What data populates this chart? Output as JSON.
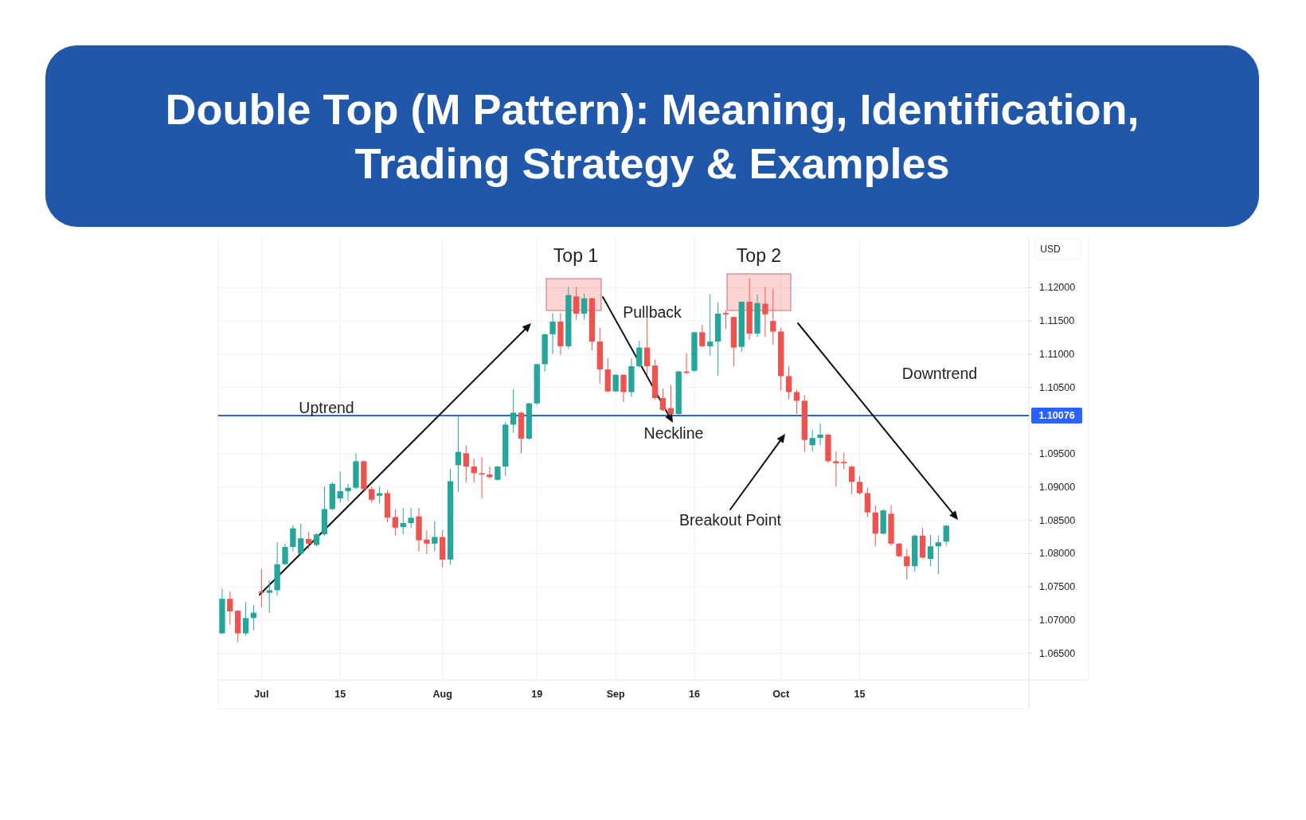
{
  "chart_data": {
    "type": "candlestick",
    "title": "Double Top (M Pattern): Meaning, Identification, Trading Strategy & Examples",
    "ylabel": "USD",
    "ylim": [
      1.061,
      1.1276
    ],
    "yticks": [
      {
        "value": 1.065,
        "label": "1.06500"
      },
      {
        "value": 1.07,
        "label": "1.07000"
      },
      {
        "value": 1.075,
        "label": "1.07500"
      },
      {
        "value": 1.08,
        "label": "1.08000"
      },
      {
        "value": 1.085,
        "label": "1.08500"
      },
      {
        "value": 1.09,
        "label": "1.09000"
      },
      {
        "value": 1.095,
        "label": "1.09500"
      },
      {
        "value": 1.105,
        "label": "1.10500"
      },
      {
        "value": 1.11,
        "label": "1.11000"
      },
      {
        "value": 1.115,
        "label": "1.11500"
      },
      {
        "value": 1.12,
        "label": "1.12000"
      }
    ],
    "grid": true,
    "categories": [
      null,
      null,
      null,
      null,
      null,
      "Jul",
      null,
      null,
      null,
      null,
      null,
      null,
      null,
      null,
      null,
      "15",
      null,
      null,
      null,
      null,
      null,
      null,
      null,
      null,
      null,
      null,
      null,
      null,
      "Aug",
      null,
      null,
      null,
      null,
      null,
      null,
      null,
      null,
      null,
      null,
      null,
      "19",
      null,
      null,
      null,
      null,
      null,
      null,
      null,
      null,
      null,
      "Sep",
      null,
      null,
      null,
      null,
      null,
      null,
      null,
      null,
      null,
      "16",
      null,
      null,
      null,
      null,
      null,
      null,
      null,
      null,
      null,
      null,
      "Oct",
      null,
      null,
      null,
      null,
      null,
      null,
      null,
      null,
      null,
      "15",
      null,
      null,
      null,
      null,
      null,
      null,
      null,
      null,
      null,
      null,
      null,
      null,
      null,
      null,
      null,
      null,
      null,
      null,
      null,
      null,
      null
    ],
    "ohlc": [
      [
        1.068,
        1.0747,
        1.0679,
        1.0732
      ],
      [
        1.0732,
        1.0743,
        1.0693,
        1.0713
      ],
      [
        1.0714,
        1.0715,
        1.0667,
        1.068
      ],
      [
        1.068,
        1.0727,
        1.0677,
        1.0703
      ],
      [
        1.0703,
        1.0722,
        1.0685,
        1.0711
      ],
      [
        1.0743,
        1.0777,
        1.0719,
        1.0741
      ],
      [
        1.0741,
        1.0759,
        1.0711,
        1.0745
      ],
      [
        1.0745,
        1.0817,
        1.0737,
        1.0784
      ],
      [
        1.0784,
        1.0815,
        1.0783,
        1.081
      ],
      [
        1.081,
        1.0843,
        1.0803,
        1.0838
      ],
      [
        1.08,
        1.0845,
        1.0799,
        1.0823
      ],
      [
        1.0822,
        1.0833,
        1.0807,
        1.0815
      ],
      [
        1.0813,
        1.0831,
        1.0811,
        1.0829
      ],
      [
        1.0829,
        1.0901,
        1.0827,
        1.0867
      ],
      [
        1.0867,
        1.0907,
        1.0865,
        1.0905
      ],
      [
        1.0883,
        1.0923,
        1.0877,
        1.0894
      ],
      [
        1.0894,
        1.0905,
        1.0879,
        1.0899
      ],
      [
        1.0899,
        1.0951,
        1.0897,
        1.0939
      ],
      [
        1.0939,
        1.094,
        1.0895,
        1.0897
      ],
      [
        1.0897,
        1.0901,
        1.0877,
        1.0881
      ],
      [
        1.0887,
        1.0901,
        1.0875,
        1.0891
      ],
      [
        1.0891,
        1.0896,
        1.0847,
        1.0854
      ],
      [
        1.0855,
        1.0867,
        1.0827,
        1.0839
      ],
      [
        1.084,
        1.0869,
        1.0829,
        1.0846
      ],
      [
        1.0846,
        1.0869,
        1.0839,
        1.0854
      ],
      [
        1.0856,
        1.0869,
        1.0803,
        1.082
      ],
      [
        1.0821,
        1.0835,
        1.0799,
        1.0815
      ],
      [
        1.0815,
        1.0849,
        1.0803,
        1.0825
      ],
      [
        1.0825,
        1.0835,
        1.0779,
        1.0791
      ],
      [
        1.0791,
        1.0927,
        1.0783,
        1.0909
      ],
      [
        1.0933,
        1.1007,
        1.0893,
        1.0953
      ],
      [
        1.0951,
        1.0963,
        1.0907,
        1.0931
      ],
      [
        1.0931,
        1.0943,
        1.0907,
        1.0921
      ],
      [
        1.0921,
        1.0945,
        1.0883,
        1.0919
      ],
      [
        1.0919,
        1.0931,
        1.0913,
        1.0915
      ],
      [
        1.0911,
        1.0932,
        1.091,
        1.0931
      ],
      [
        1.0931,
        1.0998,
        1.0917,
        1.0994
      ],
      [
        1.0994,
        1.1047,
        1.0982,
        1.1012
      ],
      [
        1.1012,
        1.1014,
        1.0951,
        1.0973
      ],
      [
        1.0973,
        1.1027,
        1.0971,
        1.1026
      ],
      [
        1.1026,
        1.1086,
        1.1024,
        1.1085
      ],
      [
        1.1085,
        1.1131,
        1.1074,
        1.113
      ],
      [
        1.113,
        1.1162,
        1.11,
        1.1149
      ],
      [
        1.1149,
        1.1162,
        1.1099,
        1.1112
      ],
      [
        1.1112,
        1.1201,
        1.1108,
        1.1189
      ],
      [
        1.1187,
        1.1201,
        1.1152,
        1.1161
      ],
      [
        1.1161,
        1.1191,
        1.1152,
        1.1184
      ],
      [
        1.1184,
        1.1185,
        1.1106,
        1.1119
      ],
      [
        1.1119,
        1.114,
        1.1056,
        1.1077
      ],
      [
        1.1077,
        1.1094,
        1.1043,
        1.1044
      ],
      [
        1.1044,
        1.107,
        1.1043,
        1.1069
      ],
      [
        1.1069,
        1.107,
        1.1028,
        1.1043
      ],
      [
        1.1043,
        1.1094,
        1.1036,
        1.1082
      ],
      [
        1.1082,
        1.112,
        1.108,
        1.111
      ],
      [
        1.111,
        1.1156,
        1.107,
        1.1082
      ],
      [
        1.1083,
        1.1092,
        1.1032,
        1.1034
      ],
      [
        1.1034,
        1.1048,
        1.1014,
        1.1016
      ],
      [
        1.1019,
        1.1054,
        1.1008,
        1.101
      ],
      [
        1.101,
        1.1075,
        1.1009,
        1.1074
      ],
      [
        1.1074,
        1.1102,
        1.107,
        1.1072
      ],
      [
        1.1075,
        1.1134,
        1.1073,
        1.1133
      ],
      [
        1.1133,
        1.1144,
        1.1111,
        1.1112
      ],
      [
        1.1112,
        1.119,
        1.1098,
        1.1119
      ],
      [
        1.1119,
        1.1178,
        1.1068,
        1.1161
      ],
      [
        1.1162,
        1.1166,
        1.1138,
        1.116
      ],
      [
        1.1156,
        1.1157,
        1.1082,
        1.111
      ],
      [
        1.1111,
        1.1179,
        1.1104,
        1.1179
      ],
      [
        1.1179,
        1.1214,
        1.1122,
        1.1131
      ],
      [
        1.1131,
        1.119,
        1.1126,
        1.1177
      ],
      [
        1.1176,
        1.1201,
        1.1126,
        1.116
      ],
      [
        1.115,
        1.1198,
        1.1114,
        1.1134
      ],
      [
        1.1134,
        1.114,
        1.1046,
        1.1067
      ],
      [
        1.1067,
        1.1082,
        1.1032,
        1.1043
      ],
      [
        1.1043,
        1.1046,
        1.101,
        1.103
      ],
      [
        1.103,
        1.1038,
        1.0953,
        1.0971
      ],
      [
        1.0963,
        1.0986,
        1.0954,
        1.0974
      ],
      [
        1.0974,
        1.0996,
        1.0963,
        1.0979
      ],
      [
        1.0979,
        1.098,
        1.0937,
        1.0939
      ],
      [
        1.0939,
        1.0954,
        1.0901,
        1.0936
      ],
      [
        1.0938,
        1.0952,
        1.0927,
        1.0936
      ],
      [
        1.0931,
        1.0932,
        1.0889,
        1.0908
      ],
      [
        1.0908,
        1.0917,
        1.0889,
        1.0891
      ],
      [
        1.0891,
        1.0899,
        1.0855,
        1.0862
      ],
      [
        1.0862,
        1.0873,
        1.0811,
        1.083
      ],
      [
        1.083,
        1.0867,
        1.0829,
        1.0865
      ],
      [
        1.086,
        1.0873,
        1.0812,
        1.0815
      ],
      [
        1.0815,
        1.0816,
        1.0795,
        1.0796
      ],
      [
        1.0796,
        1.0807,
        1.0761,
        1.0781
      ],
      [
        1.0781,
        1.0829,
        1.0773,
        1.0827
      ],
      [
        1.0827,
        1.0839,
        1.0793,
        1.0794
      ],
      [
        1.0792,
        1.0828,
        1.0781,
        1.0811
      ],
      [
        1.0811,
        1.0827,
        1.0769,
        1.0817
      ],
      [
        1.0818,
        1.0843,
        1.0812,
        1.0842
      ],
      null,
      null,
      null,
      null,
      null,
      null,
      null,
      null,
      null,
      null
    ],
    "colors": [
      "#26a69a",
      "#ef5350",
      "#ef5350",
      "#26a69a",
      "#26a69a",
      "#ef5350",
      "#26a69a",
      "#26a69a",
      "#26a69a",
      "#26a69a",
      "#26a69a",
      "#ef5350",
      "#26a69a",
      "#26a69a",
      "#26a69a",
      "#26a69a",
      "#26a69a",
      "#26a69a",
      "#ef5350",
      "#ef5350",
      "#26a69a",
      "#ef5350",
      "#ef5350",
      "#26a69a",
      "#26a69a",
      "#ef5350",
      "#ef5350",
      "#26a69a",
      "#ef5350",
      "#26a69a",
      "#26a69a",
      "#ef5350",
      "#ef5350",
      "#ef5350",
      "#ef5350",
      "#26a69a",
      "#26a69a",
      "#26a69a",
      "#ef5350",
      "#26a69a",
      "#26a69a",
      "#26a69a",
      "#26a69a",
      "#ef5350",
      "#26a69a",
      "#ef5350",
      "#26a69a",
      "#ef5350",
      "#ef5350",
      "#ef5350",
      "#26a69a",
      "#ef5350",
      "#26a69a",
      "#26a69a",
      "#ef5350",
      "#ef5350",
      "#ef5350",
      "#ef5350",
      "#26a69a",
      "#ef5350",
      "#26a69a",
      "#ef5350",
      "#26a69a",
      "#26a69a",
      "#ef5350",
      "#ef5350",
      "#26a69a",
      "#ef5350",
      "#26a69a",
      "#ef5350",
      "#ef5350",
      "#ef5350",
      "#ef5350",
      "#ef5350",
      "#ef5350",
      "#26a69a",
      "#26a69a",
      "#ef5350",
      "#ef5350",
      "#ef5350",
      "#ef5350",
      "#ef5350",
      "#ef5350",
      "#ef5350",
      "#26a69a",
      "#ef5350",
      "#ef5350",
      "#ef5350",
      "#26a69a",
      "#ef5350",
      "#26a69a",
      "#26a69a",
      "#26a69a",
      null,
      null,
      null,
      null,
      null,
      null,
      null,
      null,
      null,
      null
    ],
    "ref_lines": [
      {
        "axis": "y",
        "value": 1.10076,
        "label": "1.10076",
        "color": "#2962ff"
      }
    ],
    "annotations": [
      "Top 1",
      "Top 2",
      "Pullback",
      "Neckline",
      "Uptrend",
      "Breakout Point",
      "Downtrend"
    ]
  }
}
